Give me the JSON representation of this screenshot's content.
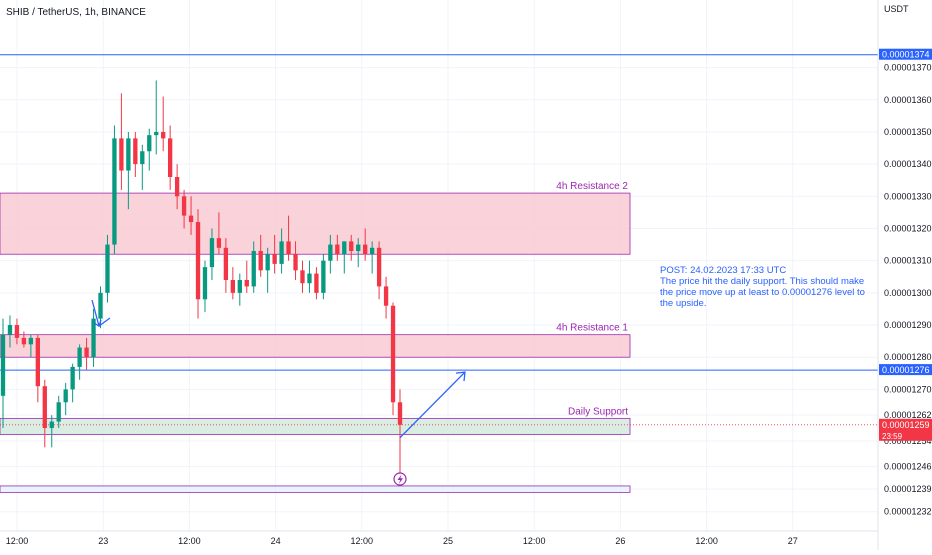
{
  "header": {
    "symbol_line": "SHIB / TetherUS, 1h, BINANCE"
  },
  "price_axis": {
    "unit": "USDT",
    "ticks": [
      "0.00001370",
      "0.00001360",
      "0.00001350",
      "0.00001340",
      "0.00001330",
      "0.00001320",
      "0.00001310",
      "0.00001300",
      "0.00001290",
      "0.00001280",
      "0.00001270",
      "0.00001262",
      "0.00001254",
      "0.00001246",
      "0.00001239",
      "0.00001232"
    ],
    "badges": [
      {
        "label": "0.00001374",
        "price": 1.374e-05,
        "color": "#2962ff"
      },
      {
        "label": "0.00001276",
        "price": 1.276e-05,
        "color": "#2962ff"
      },
      {
        "label": "0.00001259",
        "price": 1.259e-05,
        "color": "#f23645",
        "countdown": "23:59"
      }
    ]
  },
  "time_axis": {
    "ticks": [
      "12:00",
      "23",
      "12:00",
      "24",
      "12:00",
      "25",
      "12:00",
      "26",
      "12:00",
      "27"
    ]
  },
  "zones": [
    {
      "label": "4h Resistance 2",
      "top": 1.331e-05,
      "bottom": 1.312e-05,
      "color": "#f8c8d0",
      "border": "#9c27b0"
    },
    {
      "label": "4h Resistance 1",
      "top": 1.287e-05,
      "bottom": 1.28e-05,
      "color": "#f8c8d0",
      "border": "#9c27b0"
    },
    {
      "label": "Daily Support",
      "top": 1.261e-05,
      "bottom": 1.256e-05,
      "color": "#cfe8dc",
      "border": "#9c27b0"
    },
    {
      "label": "",
      "top": 1.24e-05,
      "bottom": 1.238e-05,
      "color": "#e3f2fd",
      "border": "#9c27b0"
    }
  ],
  "annotation": {
    "line1": "POST: 24.02.2023 17:33 UTC",
    "line2": "The price hit the daily support. This should make",
    "line3": "the price move up at least to 0.00001276 level to",
    "line4": "the upside.",
    "color": "#2962ff"
  },
  "colors": {
    "up": "#089981",
    "down": "#f23645",
    "line": "#2962ff",
    "zone_label": "#9c27b0"
  },
  "chart_data": {
    "type": "candlestick",
    "title": "SHIB / TetherUS, 1h, BINANCE",
    "ylim": [
      1.226e-05,
      1.391e-05
    ],
    "horizontal_lines": [
      1.374e-05,
      1.276e-05
    ],
    "projection_arrow": {
      "from": 1.255e-05,
      "to": 1.276e-05
    },
    "candles": [
      {
        "o": 1.268e-05,
        "h": 1.292e-05,
        "l": 1.258e-05,
        "c": 1.287e-05
      },
      {
        "o": 1.287e-05,
        "h": 1.293e-05,
        "l": 1.283e-05,
        "c": 1.29e-05
      },
      {
        "o": 1.29e-05,
        "h": 1.292e-05,
        "l": 1.284e-05,
        "c": 1.286e-05
      },
      {
        "o": 1.286e-05,
        "h": 1.288e-05,
        "l": 1.283e-05,
        "c": 1.284e-05
      },
      {
        "o": 1.284e-05,
        "h": 1.287e-05,
        "l": 1.28e-05,
        "c": 1.286e-05
      },
      {
        "o": 1.286e-05,
        "h": 1.287e-05,
        "l": 1.266e-05,
        "c": 1.271e-05
      },
      {
        "o": 1.271e-05,
        "h": 1.273e-05,
        "l": 1.252e-05,
        "c": 1.258e-05
      },
      {
        "o": 1.258e-05,
        "h": 1.262e-05,
        "l": 1.252e-05,
        "c": 1.26e-05
      },
      {
        "o": 1.26e-05,
        "h": 1.268e-05,
        "l": 1.258e-05,
        "c": 1.266e-05
      },
      {
        "o": 1.266e-05,
        "h": 1.272e-05,
        "l": 1.262e-05,
        "c": 1.27e-05
      },
      {
        "o": 1.27e-05,
        "h": 1.278e-05,
        "l": 1.266e-05,
        "c": 1.277e-05
      },
      {
        "o": 1.277e-05,
        "h": 1.284e-05,
        "l": 1.273e-05,
        "c": 1.283e-05
      },
      {
        "o": 1.283e-05,
        "h": 1.286e-05,
        "l": 1.276e-05,
        "c": 1.28e-05
      },
      {
        "o": 1.28e-05,
        "h": 1.295e-05,
        "l": 1.277e-05,
        "c": 1.292e-05
      },
      {
        "o": 1.292e-05,
        "h": 1.302e-05,
        "l": 1.289e-05,
        "c": 1.3e-05
      },
      {
        "o": 1.3e-05,
        "h": 1.318e-05,
        "l": 1.297e-05,
        "c": 1.315e-05
      },
      {
        "o": 1.315e-05,
        "h": 1.352e-05,
        "l": 1.312e-05,
        "c": 1.348e-05
      },
      {
        "o": 1.348e-05,
        "h": 1.362e-05,
        "l": 1.332e-05,
        "c": 1.338e-05
      },
      {
        "o": 1.338e-05,
        "h": 1.35e-05,
        "l": 1.326e-05,
        "c": 1.348e-05
      },
      {
        "o": 1.348e-05,
        "h": 1.35e-05,
        "l": 1.336e-05,
        "c": 1.34e-05
      },
      {
        "o": 1.34e-05,
        "h": 1.346e-05,
        "l": 1.332e-05,
        "c": 1.344e-05
      },
      {
        "o": 1.344e-05,
        "h": 1.351e-05,
        "l": 1.338e-05,
        "c": 1.349e-05
      },
      {
        "o": 1.349e-05,
        "h": 1.366e-05,
        "l": 1.343e-05,
        "c": 1.35e-05
      },
      {
        "o": 1.35e-05,
        "h": 1.361e-05,
        "l": 1.344e-05,
        "c": 1.348e-05
      },
      {
        "o": 1.348e-05,
        "h": 1.352e-05,
        "l": 1.332e-05,
        "c": 1.336e-05
      },
      {
        "o": 1.336e-05,
        "h": 1.34e-05,
        "l": 1.326e-05,
        "c": 1.33e-05
      },
      {
        "o": 1.33e-05,
        "h": 1.332e-05,
        "l": 1.32e-05,
        "c": 1.324e-05
      },
      {
        "o": 1.324e-05,
        "h": 1.33e-05,
        "l": 1.318e-05,
        "c": 1.322e-05
      },
      {
        "o": 1.322e-05,
        "h": 1.326e-05,
        "l": 1.292e-05,
        "c": 1.298e-05
      },
      {
        "o": 1.298e-05,
        "h": 1.31e-05,
        "l": 1.294e-05,
        "c": 1.308e-05
      },
      {
        "o": 1.308e-05,
        "h": 1.32e-05,
        "l": 1.304e-05,
        "c": 1.317e-05
      },
      {
        "o": 1.317e-05,
        "h": 1.325e-05,
        "l": 1.312e-05,
        "c": 1.314e-05
      },
      {
        "o": 1.314e-05,
        "h": 1.317e-05,
        "l": 1.3e-05,
        "c": 1.304e-05
      },
      {
        "o": 1.304e-05,
        "h": 1.308e-05,
        "l": 1.298e-05,
        "c": 1.3e-05
      },
      {
        "o": 1.3e-05,
        "h": 1.306e-05,
        "l": 1.296e-05,
        "c": 1.304e-05
      },
      {
        "o": 1.304e-05,
        "h": 1.31e-05,
        "l": 1.3e-05,
        "c": 1.302e-05
      },
      {
        "o": 1.302e-05,
        "h": 1.316e-05,
        "l": 1.3e-05,
        "c": 1.313e-05
      },
      {
        "o": 1.313e-05,
        "h": 1.318e-05,
        "l": 1.305e-05,
        "c": 1.307e-05
      },
      {
        "o": 1.307e-05,
        "h": 1.314e-05,
        "l": 1.3e-05,
        "c": 1.312e-05
      },
      {
        "o": 1.312e-05,
        "h": 1.318e-05,
        "l": 1.306e-05,
        "c": 1.309e-05
      },
      {
        "o": 1.309e-05,
        "h": 1.32e-05,
        "l": 1.306e-05,
        "c": 1.316e-05
      },
      {
        "o": 1.316e-05,
        "h": 1.324e-05,
        "l": 1.31e-05,
        "c": 1.312e-05
      },
      {
        "o": 1.312e-05,
        "h": 1.316e-05,
        "l": 1.304e-05,
        "c": 1.307e-05
      },
      {
        "o": 1.307e-05,
        "h": 1.31e-05,
        "l": 1.3e-05,
        "c": 1.303e-05
      },
      {
        "o": 1.303e-05,
        "h": 1.31e-05,
        "l": 1.3e-05,
        "c": 1.306e-05
      },
      {
        "o": 1.306e-05,
        "h": 1.308e-05,
        "l": 1.298e-05,
        "c": 1.3e-05
      },
      {
        "o": 1.3e-05,
        "h": 1.312e-05,
        "l": 1.298e-05,
        "c": 1.31e-05
      },
      {
        "o": 1.31e-05,
        "h": 1.318e-05,
        "l": 1.306e-05,
        "c": 1.315e-05
      },
      {
        "o": 1.315e-05,
        "h": 1.318e-05,
        "l": 1.31e-05,
        "c": 1.312e-05
      },
      {
        "o": 1.312e-05,
        "h": 1.316e-05,
        "l": 1.306e-05,
        "c": 1.316e-05
      },
      {
        "o": 1.316e-05,
        "h": 1.318e-05,
        "l": 1.31e-05,
        "c": 1.313e-05
      },
      {
        "o": 1.313e-05,
        "h": 1.317e-05,
        "l": 1.308e-05,
        "c": 1.315e-05
      },
      {
        "o": 1.315e-05,
        "h": 1.32e-05,
        "l": 1.31e-05,
        "c": 1.312e-05
      },
      {
        "o": 1.312e-05,
        "h": 1.316e-05,
        "l": 1.306e-05,
        "c": 1.314e-05
      },
      {
        "o": 1.314e-05,
        "h": 1.316e-05,
        "l": 1.298e-05,
        "c": 1.302e-05
      },
      {
        "o": 1.302e-05,
        "h": 1.305e-05,
        "l": 1.292e-05,
        "c": 1.296e-05
      },
      {
        "o": 1.296e-05,
        "h": 1.297e-05,
        "l": 1.262e-05,
        "c": 1.266e-05
      },
      {
        "o": 1.266e-05,
        "h": 1.27e-05,
        "l": 1.242e-05,
        "c": 1.259e-05
      }
    ]
  }
}
